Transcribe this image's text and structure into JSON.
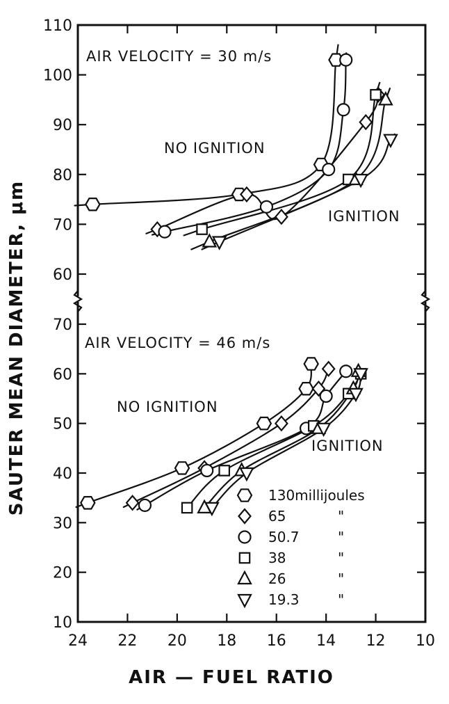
{
  "chart_data": {
    "type": "line",
    "xlabel": "AIR — FUEL RATIO",
    "ylabel": "SAUTER MEAN DIAMETER, μm",
    "x_axis": {
      "range": [
        24,
        10
      ],
      "reversed": true,
      "ticks": [
        24,
        22,
        20,
        18,
        16,
        14,
        12,
        10
      ]
    },
    "panels": [
      {
        "annotation": "AIR VELOCITY = 30 m/s",
        "region_labels": [
          "NO IGNITION",
          "IGNITION"
        ],
        "ylim": [
          60,
          110
        ],
        "yticks": [
          60,
          70,
          80,
          90,
          100,
          110
        ],
        "series": [
          {
            "energy": "130",
            "marker": "hexagon",
            "points": [
              [
                23.4,
                74
              ],
              [
                17.5,
                76
              ],
              [
                14.2,
                82
              ],
              [
                13.6,
                103
              ]
            ]
          },
          {
            "energy": "65",
            "marker": "diamond",
            "points": [
              [
                20.8,
                69
              ],
              [
                17.2,
                76
              ],
              [
                15.8,
                71.5
              ],
              [
                12.4,
                90.5
              ],
              [
                11.9,
                96
              ]
            ]
          },
          {
            "energy": "50.7",
            "marker": "circle",
            "points": [
              [
                20.5,
                68.5
              ],
              [
                16.4,
                73.5
              ],
              [
                13.9,
                81
              ],
              [
                13.3,
                93
              ],
              [
                13.2,
                103
              ]
            ]
          },
          {
            "energy": "38",
            "marker": "square",
            "points": [
              [
                19.0,
                69
              ],
              [
                13.1,
                79
              ],
              [
                12.0,
                96
              ]
            ]
          },
          {
            "energy": "26",
            "marker": "triangle-up",
            "points": [
              [
                18.7,
                66.5
              ],
              [
                12.8,
                79
              ],
              [
                11.6,
                95
              ]
            ]
          },
          {
            "energy": "19.3",
            "marker": "triangle-down",
            "points": [
              [
                18.3,
                66.5
              ],
              [
                12.6,
                79
              ],
              [
                11.4,
                87
              ]
            ]
          }
        ]
      },
      {
        "annotation": "AIR VELOCITY = 46 m/s",
        "region_labels": [
          "NO IGNITION",
          "IGNITION"
        ],
        "ylim": [
          10,
          70
        ],
        "yticks": [
          10,
          20,
          30,
          40,
          50,
          60,
          70
        ],
        "series": [
          {
            "energy": "130",
            "marker": "hexagon",
            "points": [
              [
                23.6,
                34
              ],
              [
                19.8,
                41
              ],
              [
                16.5,
                50
              ],
              [
                14.8,
                57
              ],
              [
                14.6,
                62
              ]
            ]
          },
          {
            "energy": "65",
            "marker": "diamond",
            "points": [
              [
                21.8,
                34
              ],
              [
                18.9,
                41
              ],
              [
                15.8,
                50
              ],
              [
                14.3,
                57
              ],
              [
                13.9,
                61
              ]
            ]
          },
          {
            "energy": "50.7",
            "marker": "circle",
            "points": [
              [
                21.3,
                33.5
              ],
              [
                18.8,
                40.5
              ],
              [
                14.8,
                49
              ],
              [
                14.0,
                55.5
              ],
              [
                13.2,
                60.5
              ]
            ]
          },
          {
            "energy": "38",
            "marker": "square",
            "points": [
              [
                19.6,
                33
              ],
              [
                18.1,
                40.5
              ],
              [
                14.5,
                49.5
              ],
              [
                13.1,
                56
              ],
              [
                12.6,
                60
              ]
            ]
          },
          {
            "energy": "26",
            "marker": "triangle-up",
            "points": [
              [
                18.9,
                33
              ],
              [
                17.4,
                40.5
              ],
              [
                14.3,
                49
              ],
              [
                12.9,
                57
              ],
              [
                12.7,
                60.5
              ]
            ]
          },
          {
            "energy": "19.3",
            "marker": "triangle-down",
            "points": [
              [
                18.6,
                33
              ],
              [
                17.2,
                40
              ],
              [
                14.1,
                49
              ],
              [
                12.8,
                56
              ],
              [
                12.6,
                60
              ]
            ]
          }
        ]
      }
    ],
    "legend": {
      "placement": "bottom-right",
      "entries": [
        {
          "marker": "hexagon",
          "label": "130millijoules"
        },
        {
          "marker": "diamond",
          "label": "65",
          "ditto": "\""
        },
        {
          "marker": "circle",
          "label": "50.7",
          "ditto": "\""
        },
        {
          "marker": "square",
          "label": "38",
          "ditto": "\""
        },
        {
          "marker": "triangle-up",
          "label": "26",
          "ditto": "\""
        },
        {
          "marker": "triangle-down",
          "label": "19.3",
          "ditto": "\""
        }
      ]
    }
  }
}
